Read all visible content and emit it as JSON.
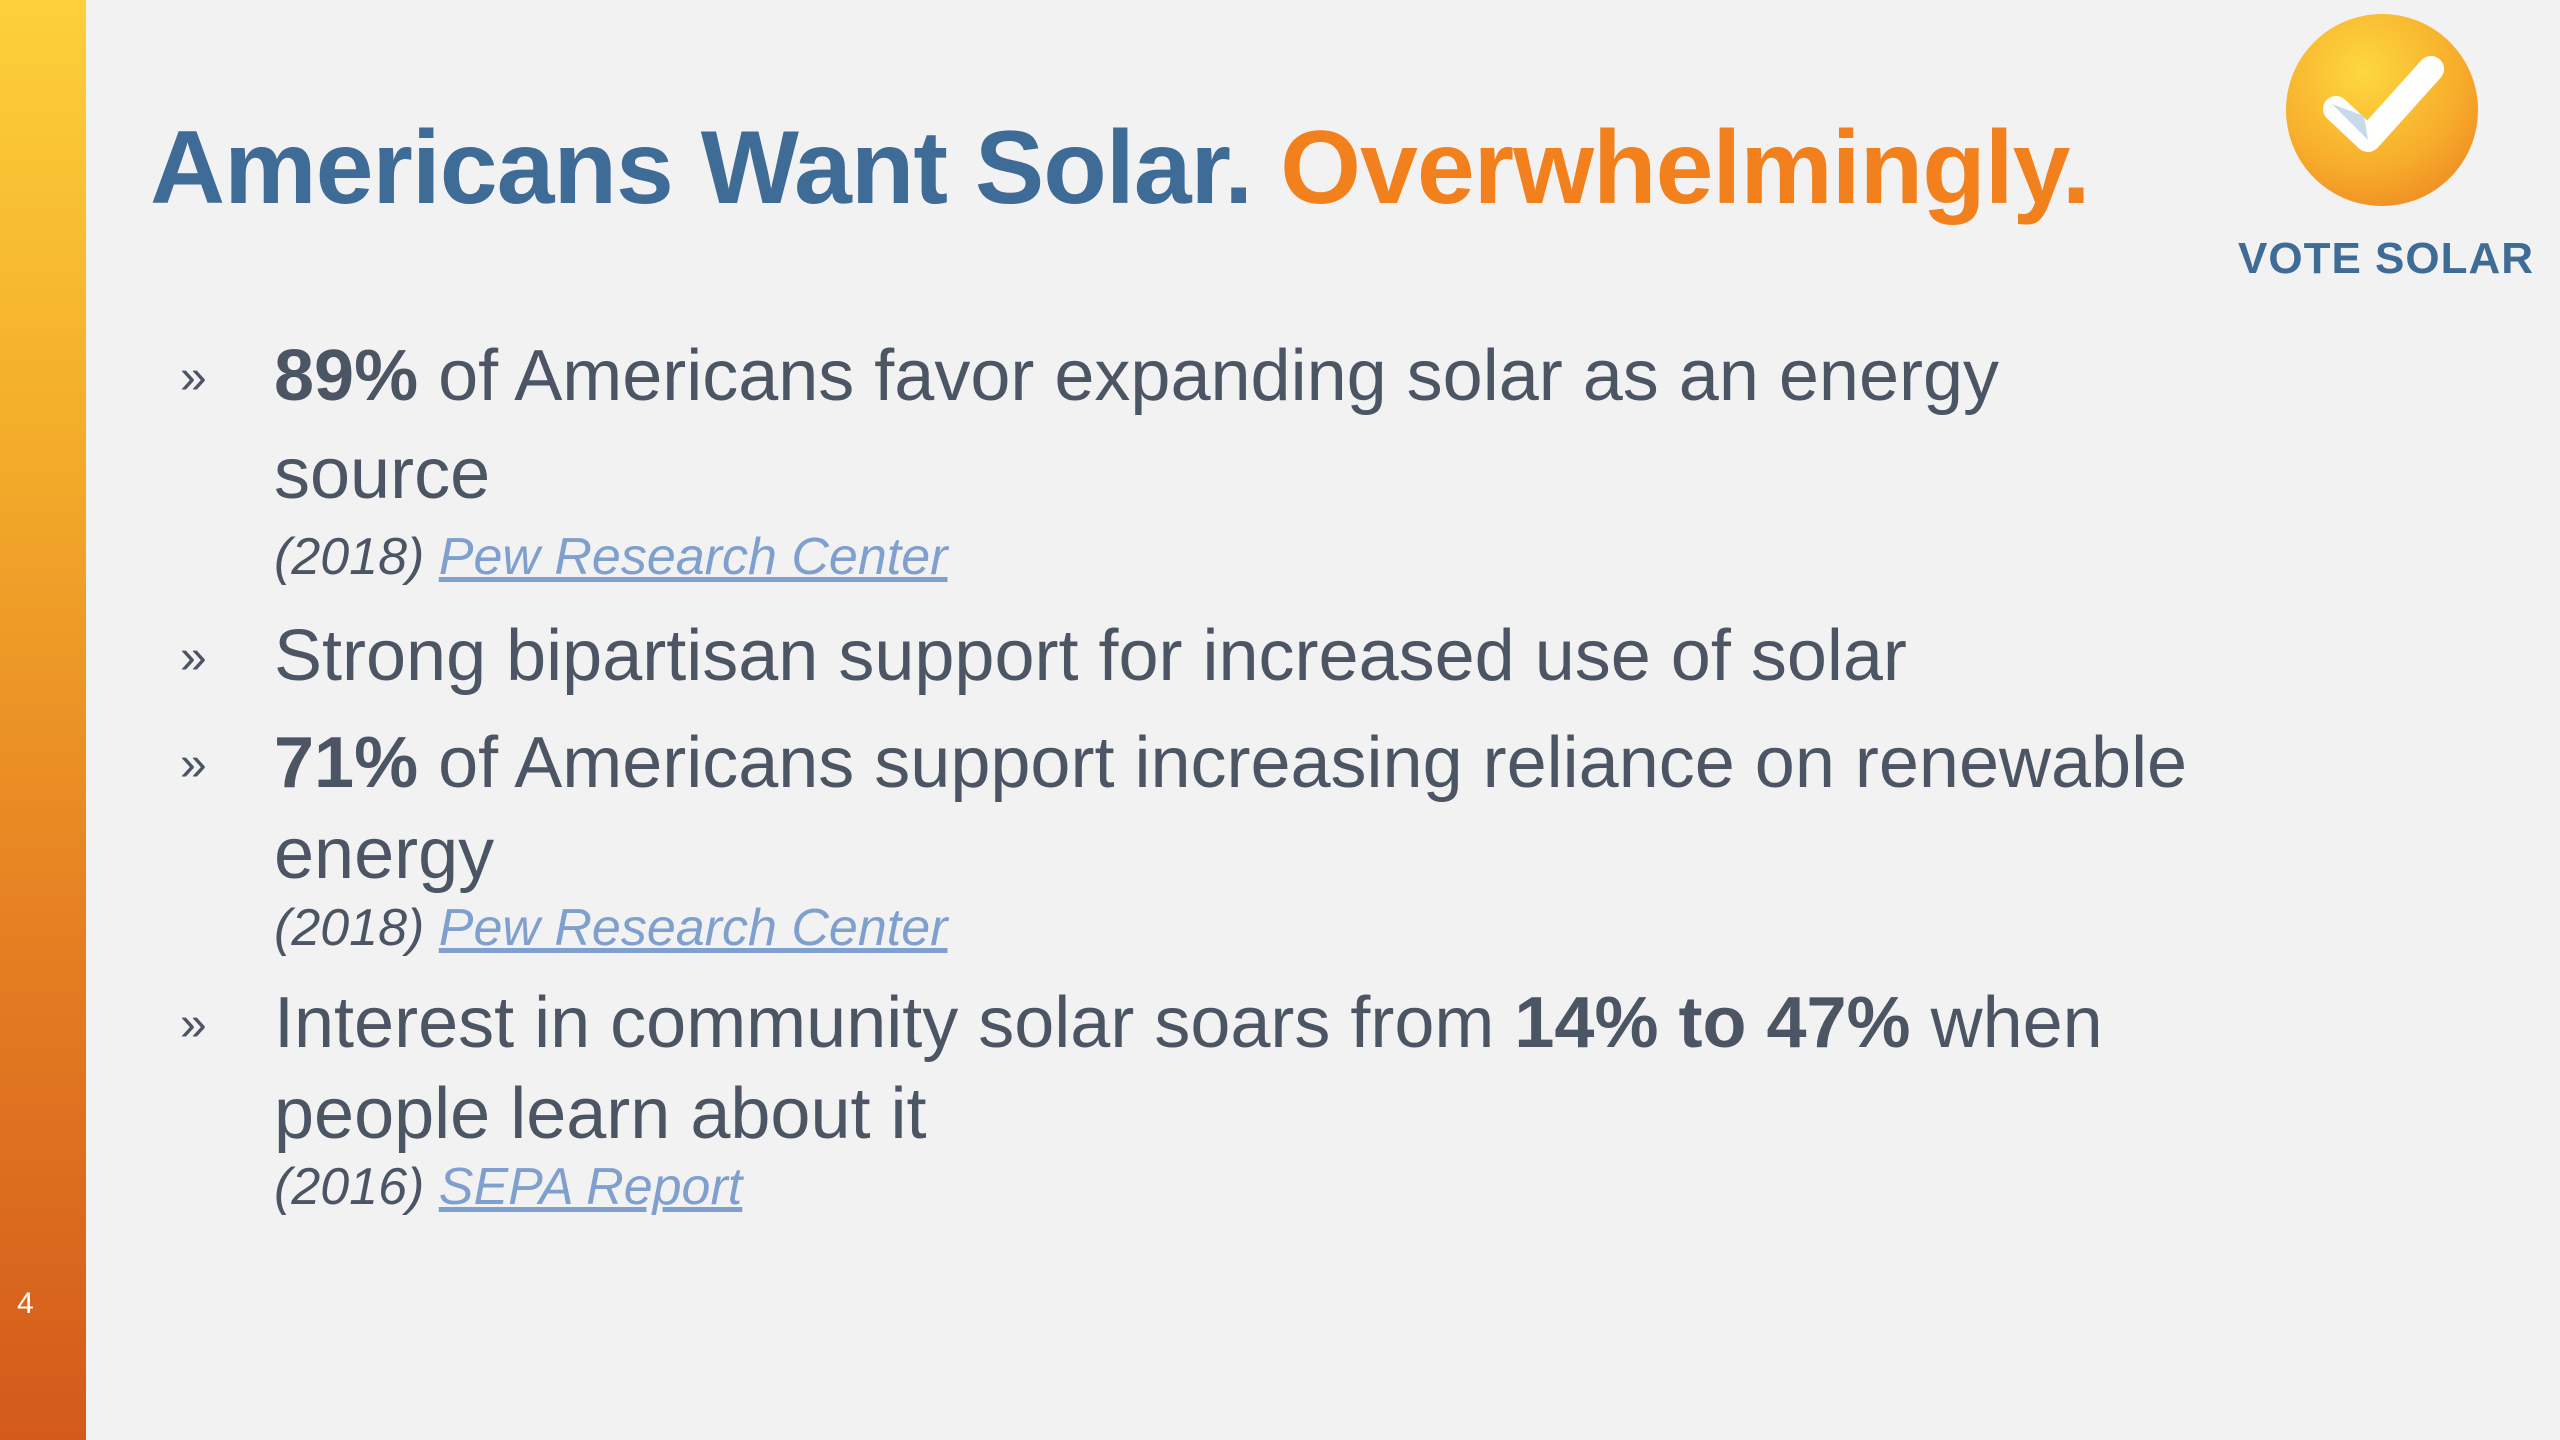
{
  "slide": {
    "page_number": "4",
    "title_part1": "Americans Want Solar.",
    "title_part2": "Overwhelmingly."
  },
  "logo": {
    "text": "VOTE SOLAR",
    "icon": "checkmark-icon"
  },
  "colors": {
    "title_blue": "#3f6b97",
    "title_orange": "#f2811d",
    "link": "#7fa0cf",
    "body_text": "#4b5563"
  },
  "bullets": [
    {
      "marker": "»",
      "lines": [
        {
          "bold": "89%",
          "text": " of Americans favor expanding solar as an energy"
        },
        {
          "text": "source"
        }
      ],
      "source": {
        "year": "(2018)",
        "link": "Pew Research Center"
      }
    },
    {
      "marker": "»",
      "lines": [
        {
          "text": "Strong bipartisan support for increased use of solar"
        }
      ]
    },
    {
      "marker": "»",
      "lines": [
        {
          "bold": "71%",
          "text": " of Americans support increasing reliance on renewable"
        },
        {
          "text": "energy"
        }
      ],
      "source": {
        "year": "(2018)",
        "link": "Pew Research Center"
      }
    },
    {
      "marker": "»",
      "lines": [
        {
          "text_before": "Interest in community solar soars from ",
          "bold": "14% to 47%",
          "text_after": " when"
        },
        {
          "text": "people learn about it"
        }
      ],
      "source": {
        "year": "(2016)",
        "link": "SEPA Report"
      }
    }
  ]
}
